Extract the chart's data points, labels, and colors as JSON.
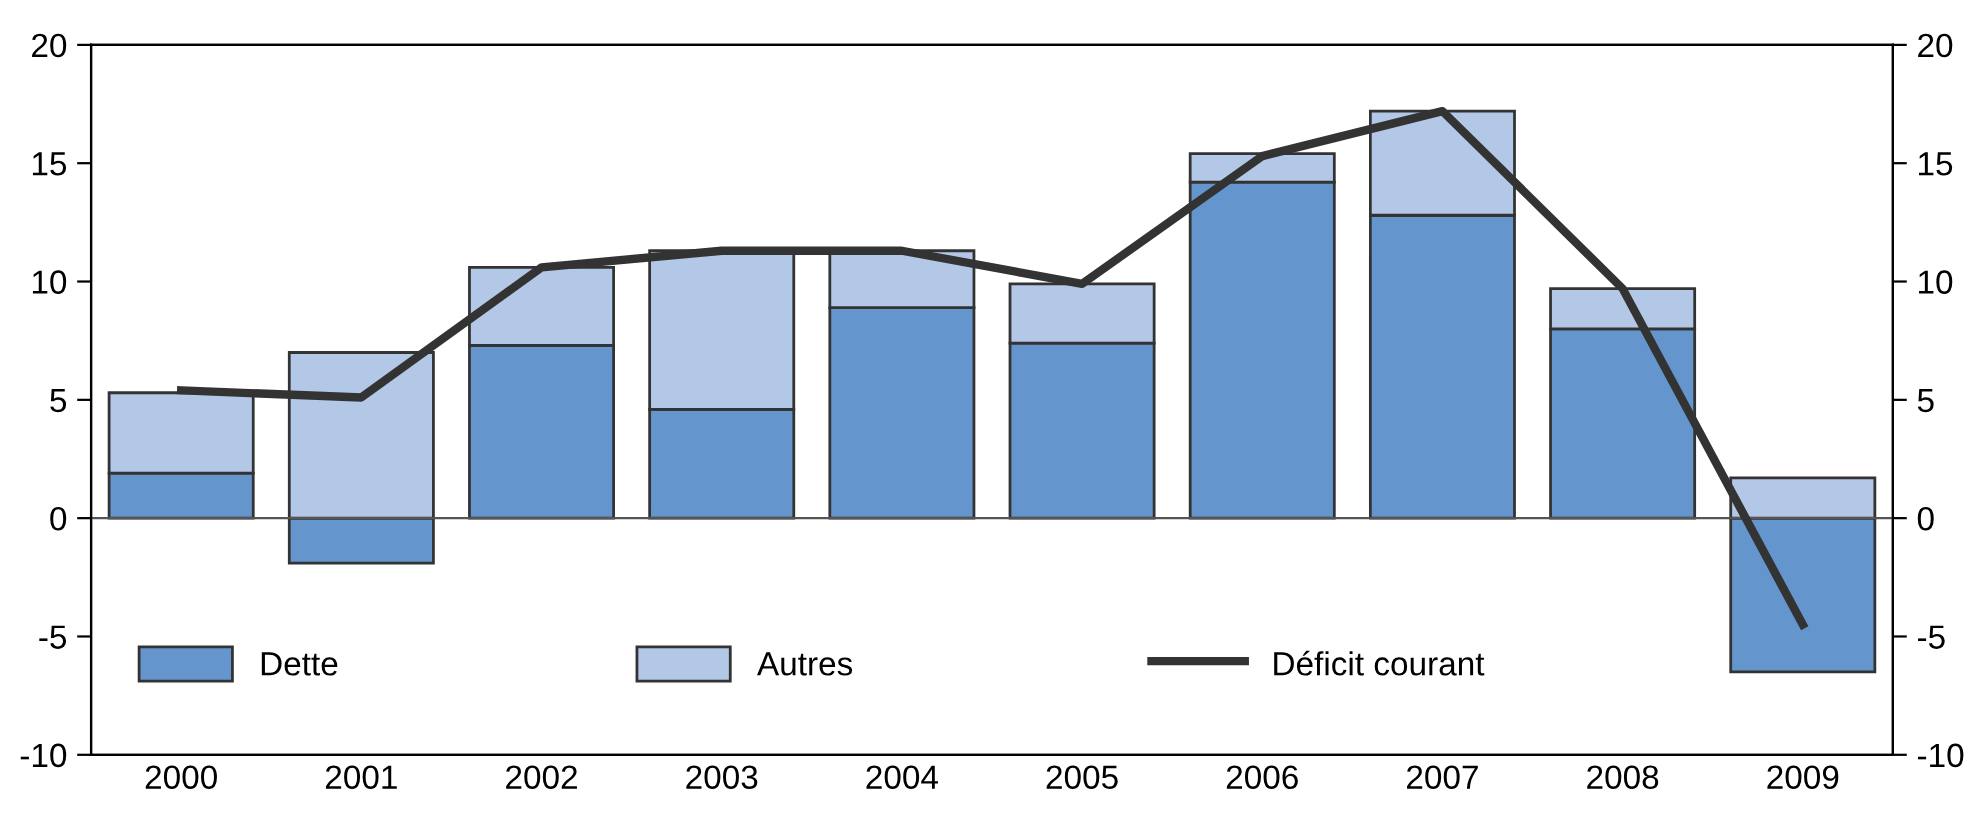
{
  "chart_data": {
    "type": "bar",
    "stacked": true,
    "categories": [
      "2000",
      "2001",
      "2002",
      "2003",
      "2004",
      "2005",
      "2006",
      "2007",
      "2008",
      "2009"
    ],
    "series": [
      {
        "name": "Dette",
        "color": "#6495cd",
        "values": [
          1.9,
          -1.9,
          7.3,
          4.6,
          8.9,
          7.4,
          14.2,
          12.8,
          8.0,
          -6.5
        ]
      },
      {
        "name": "Autres",
        "color": "#b3c7e6",
        "values": [
          3.4,
          7.0,
          3.3,
          6.7,
          2.4,
          2.5,
          1.2,
          4.4,
          1.7,
          1.7
        ]
      },
      {
        "name": "Déficit courant",
        "type": "line",
        "color": "#333333",
        "values": [
          5.4,
          5.1,
          10.6,
          11.3,
          11.3,
          9.9,
          15.3,
          17.2,
          9.7,
          -4.5
        ]
      }
    ],
    "ylim": [
      -10,
      20
    ],
    "yticks": [
      -10,
      -5,
      0,
      5,
      10,
      15,
      20
    ],
    "y2lim": [
      -10,
      20
    ],
    "y2ticks": [
      -10,
      -5,
      0,
      5,
      10,
      15,
      20
    ],
    "ref_lines": [
      {
        "axis": "y",
        "value": 0,
        "color": "#555555"
      }
    ],
    "grid": false,
    "legend": "bottom",
    "marker": "none",
    "line_style": "solid"
  }
}
